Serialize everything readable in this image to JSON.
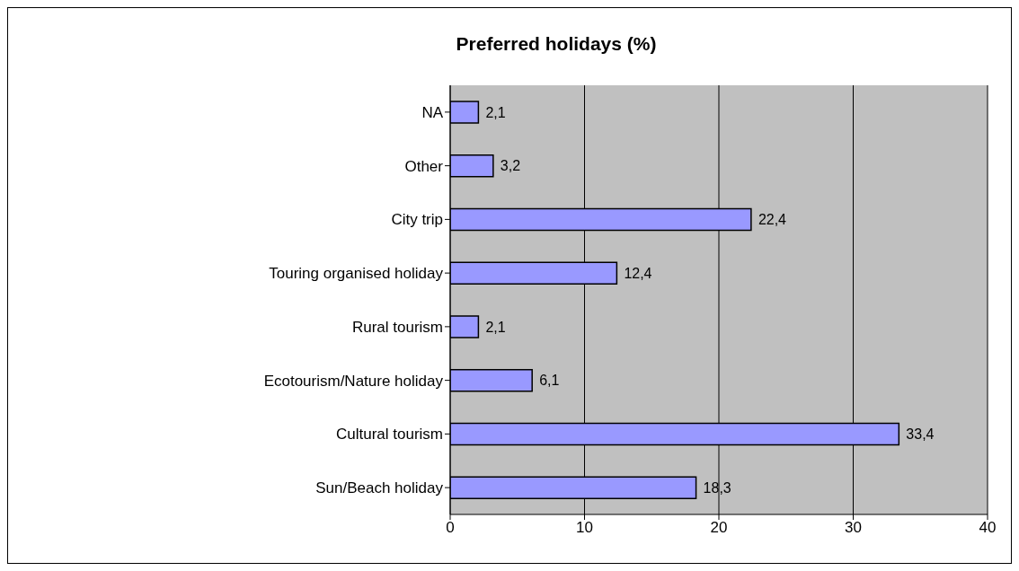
{
  "chart_data": {
    "type": "bar",
    "orientation": "horizontal",
    "title": "Preferred holidays (%)",
    "categories": [
      "NA",
      "Other",
      "City trip",
      "Touring organised holiday",
      "Rural tourism",
      "Ecotourism/Nature holiday",
      "Cultural tourism",
      "Sun/Beach holiday"
    ],
    "values": [
      2.1,
      3.2,
      22.4,
      12.4,
      2.1,
      6.1,
      33.4,
      18.3
    ],
    "value_labels": [
      "2,1",
      "3,2",
      "22,4",
      "12,4",
      "2,1",
      "6,1",
      "33,4",
      "18,3"
    ],
    "color": "#9999ff",
    "xlim": [
      0,
      40
    ],
    "xticks": [
      0,
      10,
      20,
      30,
      40
    ],
    "grid": "x"
  }
}
